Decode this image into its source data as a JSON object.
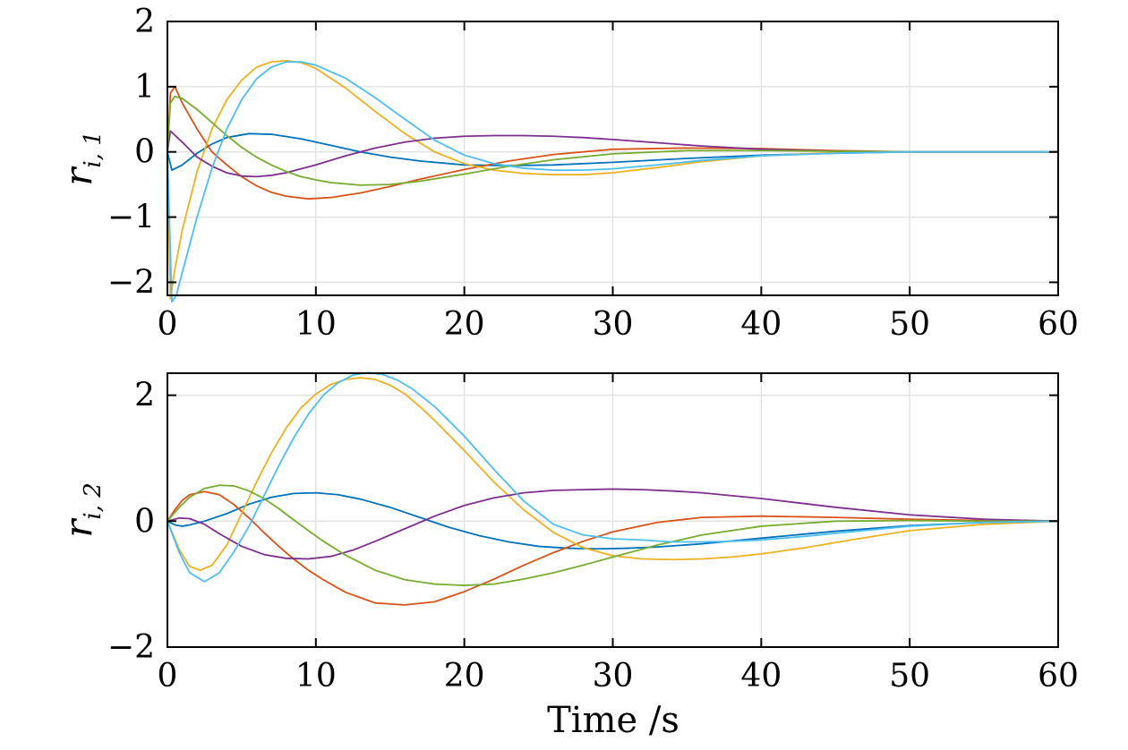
{
  "chart_data": [
    {
      "type": "line",
      "ylabel": {
        "base": "r",
        "sub": "i, 1"
      },
      "xlabel": "",
      "xlim": [
        0,
        60
      ],
      "ylim": [
        -2.2,
        2
      ],
      "xticks": [
        0,
        10,
        20,
        30,
        40,
        50,
        60
      ],
      "yticks": [
        -2,
        -1,
        0,
        1,
        2
      ],
      "ytick_labels": [
        "−2",
        "−1",
        "0",
        "1",
        "2"
      ],
      "grid": true,
      "series": [
        {
          "color": "#0072BD",
          "x": [
            0,
            0.3,
            1,
            2,
            3,
            4,
            5.5,
            7,
            9,
            11,
            13,
            15,
            17,
            20,
            23,
            26,
            30,
            35,
            40,
            45,
            50,
            55,
            60
          ],
          "y": [
            0,
            -0.28,
            -0.2,
            -0.02,
            0.12,
            0.22,
            0.28,
            0.27,
            0.2,
            0.1,
            0.0,
            -0.08,
            -0.14,
            -0.2,
            -0.21,
            -0.2,
            -0.16,
            -0.1,
            -0.05,
            -0.02,
            0.0,
            0.0,
            0.0
          ]
        },
        {
          "color": "#D95319",
          "x": [
            0,
            0.2,
            0.5,
            1,
            2,
            3,
            4,
            5,
            6,
            7,
            8,
            9.5,
            11,
            13,
            15,
            17,
            20,
            23,
            26,
            30,
            35,
            40,
            45,
            50,
            55,
            60
          ],
          "y": [
            0,
            0.9,
            1.0,
            0.75,
            0.35,
            0.0,
            -0.2,
            -0.38,
            -0.52,
            -0.62,
            -0.68,
            -0.72,
            -0.7,
            -0.63,
            -0.53,
            -0.42,
            -0.27,
            -0.14,
            -0.04,
            0.04,
            0.06,
            0.05,
            0.02,
            0.0,
            0.0,
            0.0
          ]
        },
        {
          "color": "#EDB120",
          "x": [
            0,
            0.2,
            0.5,
            1,
            2,
            3,
            4,
            5,
            6,
            7,
            8,
            9,
            10,
            12,
            14,
            16,
            18,
            20,
            22,
            24,
            26,
            28,
            30,
            33,
            36,
            40,
            45,
            50,
            55,
            60
          ],
          "y": [
            0,
            -2.25,
            -1.8,
            -1.2,
            -0.3,
            0.35,
            0.8,
            1.1,
            1.3,
            1.38,
            1.4,
            1.37,
            1.28,
            0.98,
            0.62,
            0.28,
            0.0,
            -0.18,
            -0.28,
            -0.33,
            -0.35,
            -0.35,
            -0.32,
            -0.24,
            -0.15,
            -0.06,
            -0.01,
            0.0,
            0.0,
            0.0
          ]
        },
        {
          "color": "#7E2F8E",
          "x": [
            0,
            0.2,
            1,
            2,
            3,
            4,
            5,
            6,
            7,
            8,
            10,
            12,
            14,
            16,
            18,
            20,
            22,
            24,
            26,
            28,
            30,
            33,
            36,
            40,
            45,
            50,
            55,
            60
          ],
          "y": [
            0,
            0.32,
            0.15,
            -0.08,
            -0.22,
            -0.32,
            -0.37,
            -0.38,
            -0.36,
            -0.32,
            -0.2,
            -0.06,
            0.06,
            0.15,
            0.21,
            0.24,
            0.25,
            0.25,
            0.24,
            0.22,
            0.19,
            0.14,
            0.09,
            0.04,
            0.01,
            0.0,
            0.0,
            0.0
          ]
        },
        {
          "color": "#77AC30",
          "x": [
            0,
            0.2,
            0.5,
            1,
            2,
            3,
            4,
            5,
            6,
            7,
            8,
            9,
            10,
            11,
            13,
            15,
            17,
            20,
            23,
            26,
            30,
            35,
            40,
            45,
            50,
            55,
            60
          ],
          "y": [
            0,
            0.75,
            0.85,
            0.82,
            0.65,
            0.45,
            0.25,
            0.07,
            -0.08,
            -0.2,
            -0.3,
            -0.38,
            -0.43,
            -0.47,
            -0.51,
            -0.5,
            -0.45,
            -0.34,
            -0.22,
            -0.12,
            -0.03,
            0.02,
            0.02,
            0.01,
            0.0,
            0.0,
            0.0
          ]
        },
        {
          "color": "#4DBEEE",
          "x": [
            0,
            0.3,
            0.6,
            1,
            2,
            3,
            4,
            5,
            6,
            7,
            8,
            9,
            10,
            12,
            14,
            16,
            18,
            20,
            22,
            24,
            26,
            28,
            30,
            33,
            36,
            40,
            45,
            50,
            55,
            60
          ],
          "y": [
            0,
            -2.3,
            -2.2,
            -1.85,
            -1.0,
            -0.25,
            0.35,
            0.8,
            1.12,
            1.3,
            1.38,
            1.38,
            1.33,
            1.13,
            0.83,
            0.5,
            0.18,
            -0.05,
            -0.18,
            -0.25,
            -0.28,
            -0.28,
            -0.26,
            -0.2,
            -0.13,
            -0.06,
            -0.02,
            0.0,
            0.0,
            0.0
          ]
        }
      ]
    },
    {
      "type": "line",
      "ylabel": {
        "base": "r",
        "sub": "i, 2"
      },
      "xlabel": "Time /s",
      "xlim": [
        0,
        60
      ],
      "ylim": [
        -2,
        2.35
      ],
      "xticks": [
        0,
        10,
        20,
        30,
        40,
        50,
        60
      ],
      "yticks": [
        -2,
        0,
        2
      ],
      "ytick_labels": [
        "−2",
        "0",
        "2"
      ],
      "grid": true,
      "series": [
        {
          "color": "#0072BD",
          "x": [
            0,
            0.5,
            1,
            1.5,
            2.5,
            4,
            5.5,
            7,
            8.5,
            10,
            11.5,
            13,
            15,
            17,
            19,
            21,
            23,
            25,
            27,
            29,
            31,
            33,
            36,
            40,
            45,
            50,
            55,
            60
          ],
          "y": [
            0,
            -0.06,
            -0.08,
            -0.06,
            0.0,
            0.12,
            0.27,
            0.38,
            0.44,
            0.45,
            0.42,
            0.35,
            0.22,
            0.06,
            -0.1,
            -0.23,
            -0.33,
            -0.4,
            -0.43,
            -0.44,
            -0.43,
            -0.41,
            -0.36,
            -0.27,
            -0.16,
            -0.07,
            -0.02,
            0.0
          ]
        },
        {
          "color": "#D95319",
          "x": [
            0,
            0.5,
            1,
            1.5,
            2.5,
            3.5,
            4.5,
            5.5,
            6.5,
            7.5,
            8.5,
            9.5,
            10.5,
            12,
            14,
            16,
            18,
            20,
            22,
            24,
            26,
            28,
            30,
            33,
            36,
            40,
            45,
            50,
            55,
            60
          ],
          "y": [
            0,
            0.18,
            0.33,
            0.42,
            0.47,
            0.42,
            0.26,
            0.05,
            -0.18,
            -0.4,
            -0.6,
            -0.78,
            -0.93,
            -1.13,
            -1.3,
            -1.33,
            -1.28,
            -1.12,
            -0.92,
            -0.7,
            -0.5,
            -0.32,
            -0.17,
            -0.02,
            0.06,
            0.08,
            0.06,
            0.03,
            0.01,
            0.0
          ]
        },
        {
          "color": "#EDB120",
          "x": [
            0,
            0.8,
            1.5,
            2.2,
            3,
            4,
            5,
            6,
            7,
            8,
            9,
            10,
            11,
            12,
            13,
            14,
            15,
            16,
            17,
            18,
            20,
            22,
            24,
            26,
            28,
            30,
            32,
            34,
            36,
            38,
            40,
            43,
            46,
            50,
            55,
            60
          ],
          "y": [
            0,
            -0.45,
            -0.72,
            -0.78,
            -0.7,
            -0.38,
            0.12,
            0.62,
            1.08,
            1.48,
            1.8,
            2.02,
            2.17,
            2.25,
            2.28,
            2.25,
            2.16,
            2.02,
            1.82,
            1.6,
            1.12,
            0.62,
            0.18,
            -0.18,
            -0.42,
            -0.55,
            -0.6,
            -0.61,
            -0.6,
            -0.57,
            -0.52,
            -0.42,
            -0.3,
            -0.15,
            -0.05,
            0.0
          ]
        },
        {
          "color": "#7E2F8E",
          "x": [
            0,
            0.8,
            1.5,
            2.5,
            3.5,
            5,
            6.5,
            8,
            9.5,
            11,
            12.5,
            14,
            16,
            18,
            20,
            22,
            24,
            26,
            28,
            30,
            32,
            34,
            36,
            40,
            45,
            50,
            55,
            60
          ],
          "y": [
            0,
            0.05,
            0.04,
            -0.05,
            -0.2,
            -0.4,
            -0.53,
            -0.59,
            -0.6,
            -0.56,
            -0.46,
            -0.32,
            -0.12,
            0.08,
            0.25,
            0.37,
            0.45,
            0.49,
            0.5,
            0.51,
            0.5,
            0.48,
            0.45,
            0.36,
            0.22,
            0.1,
            0.03,
            0.0
          ]
        },
        {
          "color": "#77AC30",
          "x": [
            0,
            0.8,
            1.5,
            2.5,
            3.5,
            4.5,
            5.5,
            6.5,
            7.5,
            8.5,
            9.5,
            10.5,
            12,
            14,
            16,
            18,
            20,
            22,
            24,
            26,
            28,
            30,
            33,
            36,
            40,
            45,
            50,
            55,
            60
          ],
          "y": [
            0,
            0.22,
            0.38,
            0.52,
            0.57,
            0.56,
            0.48,
            0.36,
            0.2,
            0.02,
            -0.15,
            -0.32,
            -0.54,
            -0.78,
            -0.93,
            -1.0,
            -1.02,
            -1.0,
            -0.92,
            -0.82,
            -0.7,
            -0.57,
            -0.38,
            -0.22,
            -0.08,
            0.0,
            0.01,
            0.0,
            0.0
          ]
        },
        {
          "color": "#4DBEEE",
          "x": [
            0,
            0.8,
            1.5,
            2.5,
            3.5,
            4.5,
            5.5,
            6.5,
            7.5,
            8.5,
            9.5,
            10.5,
            11.5,
            12.5,
            13.5,
            14.5,
            15.5,
            16.5,
            18,
            20,
            22,
            24,
            26,
            28,
            30,
            32,
            34,
            36,
            38,
            40,
            43,
            46,
            50,
            55,
            60
          ],
          "y": [
            0,
            -0.5,
            -0.82,
            -0.96,
            -0.82,
            -0.48,
            -0.08,
            0.4,
            0.88,
            1.32,
            1.7,
            2.0,
            2.2,
            2.32,
            2.36,
            2.33,
            2.24,
            2.1,
            1.82,
            1.35,
            0.82,
            0.32,
            -0.05,
            -0.22,
            -0.28,
            -0.3,
            -0.33,
            -0.33,
            -0.32,
            -0.3,
            -0.24,
            -0.17,
            -0.08,
            -0.02,
            0.0
          ]
        }
      ]
    }
  ]
}
